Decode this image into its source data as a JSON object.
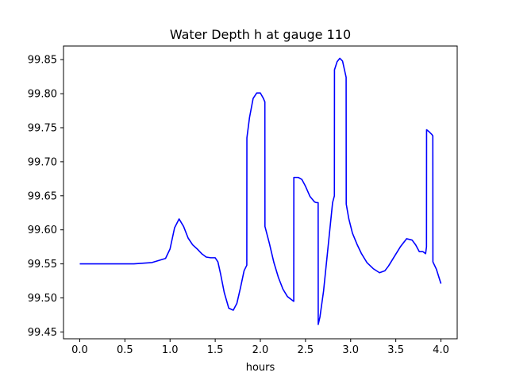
{
  "chart_data": {
    "type": "line",
    "title": "Water Depth h at gauge 110",
    "xlabel": "hours",
    "ylabel": "",
    "xlim": [
      -0.18,
      4.18
    ],
    "ylim": [
      99.44,
      99.87
    ],
    "x_ticks": [
      0.0,
      0.5,
      1.0,
      1.5,
      2.0,
      2.5,
      3.0,
      3.5,
      4.0
    ],
    "x_tick_labels": [
      "0.0",
      "0.5",
      "1.0",
      "1.5",
      "2.0",
      "2.5",
      "3.0",
      "3.5",
      "4.0"
    ],
    "y_ticks": [
      99.45,
      99.5,
      99.55,
      99.6,
      99.65,
      99.7,
      99.75,
      99.8,
      99.85
    ],
    "y_tick_labels": [
      "99.45",
      "99.50",
      "99.55",
      "99.60",
      "99.65",
      "99.70",
      "99.75",
      "99.80",
      "99.85"
    ],
    "grid": false,
    "legend": "none",
    "line_color": "#0000ff",
    "series": [
      {
        "x": [
          0.0,
          0.3,
          0.6,
          0.8,
          0.95,
          1.0,
          1.05,
          1.1,
          1.15,
          1.2,
          1.25,
          1.3,
          1.35,
          1.4,
          1.45,
          1.5,
          1.53,
          1.56,
          1.6,
          1.65,
          1.7,
          1.74,
          1.78,
          1.82,
          1.85,
          1.851,
          1.88,
          1.92,
          1.96,
          2.0,
          2.03,
          2.05,
          2.051,
          2.1,
          2.15,
          2.2,
          2.25,
          2.3,
          2.35,
          2.37,
          2.371,
          2.42,
          2.46,
          2.5,
          2.55,
          2.6,
          2.62,
          2.64,
          2.641,
          2.66,
          2.7,
          2.75,
          2.8,
          2.82,
          2.821,
          2.85,
          2.88,
          2.91,
          2.94,
          2.95,
          2.951,
          2.98,
          3.02,
          3.07,
          3.12,
          3.18,
          3.25,
          3.32,
          3.38,
          3.42,
          3.48,
          3.55,
          3.62,
          3.68,
          3.72,
          3.76,
          3.8,
          3.83,
          3.84,
          3.841,
          3.87,
          3.9,
          3.91,
          3.911,
          3.95,
          4.0
        ],
        "y": [
          99.55,
          99.55,
          99.55,
          99.552,
          99.558,
          99.572,
          99.603,
          99.616,
          99.605,
          99.588,
          99.578,
          99.572,
          99.565,
          99.56,
          99.559,
          99.559,
          99.553,
          99.535,
          99.508,
          99.485,
          99.482,
          99.492,
          99.515,
          99.54,
          99.548,
          99.735,
          99.765,
          99.793,
          99.801,
          99.801,
          99.794,
          99.788,
          99.605,
          99.58,
          99.552,
          99.53,
          99.513,
          99.502,
          99.497,
          99.495,
          99.677,
          99.677,
          99.674,
          99.664,
          99.649,
          99.641,
          99.64,
          99.64,
          99.461,
          99.472,
          99.51,
          99.575,
          99.64,
          99.65,
          99.835,
          99.847,
          99.852,
          99.848,
          99.83,
          99.824,
          99.638,
          99.616,
          99.595,
          99.579,
          99.565,
          99.552,
          99.543,
          99.537,
          99.54,
          99.547,
          99.56,
          99.575,
          99.587,
          99.585,
          99.578,
          99.568,
          99.568,
          99.565,
          99.575,
          99.747,
          99.744,
          99.74,
          99.738,
          99.553,
          99.542,
          99.521
        ]
      }
    ]
  }
}
